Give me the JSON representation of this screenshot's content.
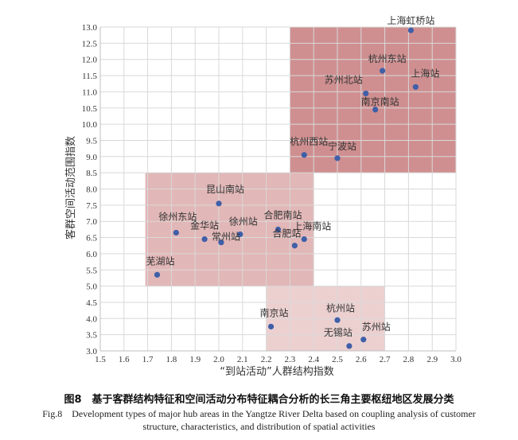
{
  "chart_data": {
    "type": "scatter",
    "xlabel": "“到站活动”人群结构指数",
    "ylabel": "客群空间活动范围指数",
    "xlim": [
      1.5,
      3.0
    ],
    "ylim": [
      3.0,
      13.0
    ],
    "xticks": [
      "1.5",
      "1.6",
      "1.7",
      "1.8",
      "1.9",
      "2.0",
      "2.1",
      "2.2",
      "2.3",
      "2.4",
      "2.5",
      "2.6",
      "2.7",
      "2.8",
      "2.9",
      "3.0"
    ],
    "yticks": [
      "3.0",
      "3.5",
      "4.0",
      "4.5",
      "5.0",
      "5.5",
      "6.0",
      "6.5",
      "7.0",
      "7.5",
      "8.0",
      "8.5",
      "9.0",
      "9.5",
      "10.0",
      "10.5",
      "11.0",
      "11.5",
      "12.0",
      "12.5",
      "13.0"
    ],
    "grid": true,
    "regions": [
      {
        "x": [
          2.3,
          3.0
        ],
        "y": [
          8.5,
          13.0
        ],
        "color": "#cf8f90"
      },
      {
        "x": [
          1.69,
          2.4
        ],
        "y": [
          5.0,
          8.5
        ],
        "color": "#e2b7b7"
      },
      {
        "x": [
          2.2,
          2.7
        ],
        "y": [
          3.0,
          5.0
        ],
        "color": "#ecd0d0"
      }
    ],
    "points": [
      {
        "label": "上海虹桥站",
        "x": 2.81,
        "y": 12.9
      },
      {
        "label": "杭州东站",
        "x": 2.69,
        "y": 11.65
      },
      {
        "label": "苏州北站",
        "x": 2.62,
        "y": 10.95
      },
      {
        "label": "上海站",
        "x": 2.83,
        "y": 11.15
      },
      {
        "label": "南京南站",
        "x": 2.66,
        "y": 10.45
      },
      {
        "label": "杭州西站",
        "x": 2.36,
        "y": 9.05
      },
      {
        "label": "宁波站",
        "x": 2.5,
        "y": 8.95
      },
      {
        "label": "昆山南站",
        "x": 2.0,
        "y": 7.55
      },
      {
        "label": "徐州东站",
        "x": 1.82,
        "y": 6.65
      },
      {
        "label": "徐州站",
        "x": 2.09,
        "y": 6.6
      },
      {
        "label": "金华站",
        "x": 1.94,
        "y": 6.45
      },
      {
        "label": "常州站",
        "x": 2.01,
        "y": 6.35
      },
      {
        "label": "合肥南站",
        "x": 2.25,
        "y": 6.75
      },
      {
        "label": "上海南站",
        "x": 2.36,
        "y": 6.45
      },
      {
        "label": "合肥站",
        "x": 2.32,
        "y": 6.25
      },
      {
        "label": "芜湖站",
        "x": 1.74,
        "y": 5.35
      },
      {
        "label": "南京站",
        "x": 2.22,
        "y": 3.75
      },
      {
        "label": "杭州站",
        "x": 2.5,
        "y": 3.95
      },
      {
        "label": "苏州站",
        "x": 2.61,
        "y": 3.35
      },
      {
        "label": "无锡站",
        "x": 2.55,
        "y": 3.15
      }
    ]
  },
  "caption": {
    "cn": "图8　基于客群结构特征和空间活动分布特征耦合分析的长三角主要枢纽地区发展分类",
    "en": "Fig.8　Development types of major hub areas in the Yangtze River Delta based on coupling analysis of customer structure, characteristics, and distribution of spatial activities"
  },
  "colors": {
    "point": "#3f5fa8",
    "grid": "#d9d9d9",
    "axis": "#bfbfbf"
  }
}
